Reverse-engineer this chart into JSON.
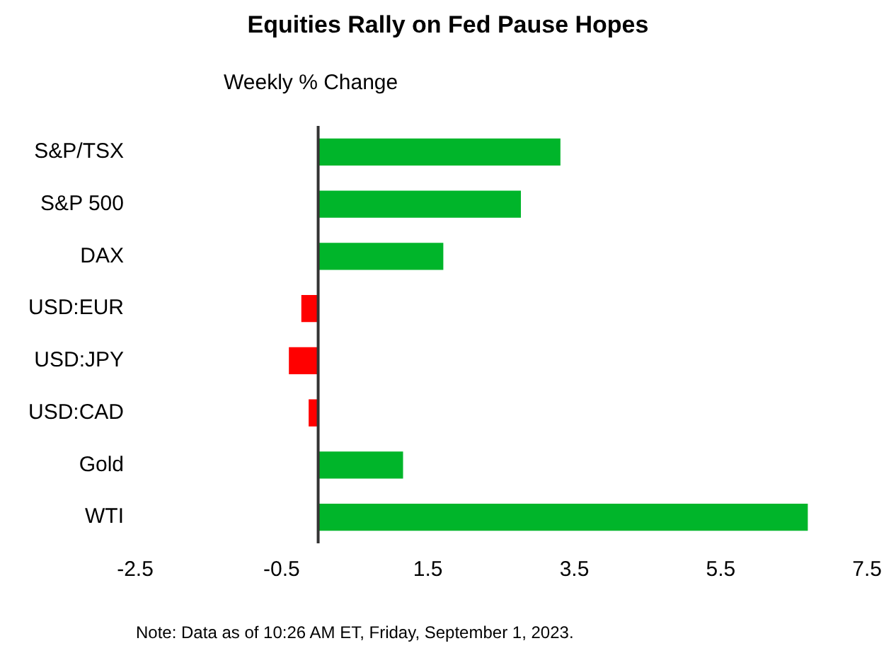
{
  "chart_data": {
    "type": "bar",
    "orientation": "horizontal",
    "title": "Equities Rally on Fed Pause Hopes",
    "subtitle": "Weekly % Change",
    "categories": [
      "S&P/TSX",
      "S&P 500",
      "DAX",
      "USD:EUR",
      "USD:JPY",
      "USD:CAD",
      "Gold",
      "WTI"
    ],
    "values": [
      3.31,
      2.77,
      1.71,
      -0.23,
      -0.4,
      -0.13,
      1.16,
      6.69
    ],
    "colors": [
      "#00b52a",
      "#00b52a",
      "#00b52a",
      "#ff0000",
      "#ff0000",
      "#ff0000",
      "#00b52a",
      "#00b52a"
    ],
    "xlim": [
      -2.5,
      7.5
    ],
    "xticks": [
      -2.5,
      -0.5,
      1.5,
      3.5,
      5.5,
      7.5
    ],
    "grid": false,
    "legend": false,
    "annotations": [
      "Note: Data as of 10:26 AM ET, Friday, September 1, 2023."
    ]
  }
}
